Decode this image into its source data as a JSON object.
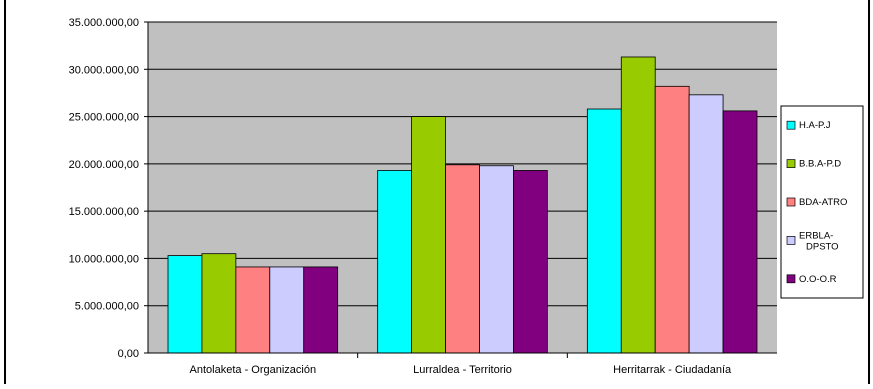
{
  "chart_data": {
    "type": "bar",
    "categories": [
      "Antolaketa - Organización",
      "Lurraldea - Territorio",
      "Herritarrak - Ciudadanía"
    ],
    "series": [
      {
        "name": "H.A-P.J",
        "color": "#00FFFF",
        "values": [
          10300000,
          19300000,
          25800000
        ]
      },
      {
        "name": "B.B.A-P.D",
        "color": "#99CC00",
        "values": [
          10500000,
          25000000,
          31300000
        ]
      },
      {
        "name": "BDA-ATRO",
        "color": "#FF8080",
        "values": [
          9100000,
          19900000,
          28200000
        ]
      },
      {
        "name": "ERBLA-DPSTO",
        "color": "#CCCCFF",
        "values": [
          9100000,
          19800000,
          27300000
        ]
      },
      {
        "name": "O.O-O.R",
        "color": "#800080",
        "values": [
          9100000,
          19300000,
          25600000
        ]
      }
    ],
    "ylim": [
      0,
      35000000
    ],
    "yticks": [
      0,
      5000000,
      10000000,
      15000000,
      20000000,
      25000000,
      30000000,
      35000000
    ],
    "ytick_labels": [
      "0,00",
      "5.000.000,00",
      "10.000.000,00",
      "15.000.000,00",
      "20.000.000,00",
      "25.000.000,00",
      "30.000.000,00",
      "35.000.000,00"
    ],
    "grid": true,
    "plot_background": "#C0C0C0",
    "legend_position": "right",
    "title": "",
    "xlabel": "",
    "ylabel": ""
  }
}
